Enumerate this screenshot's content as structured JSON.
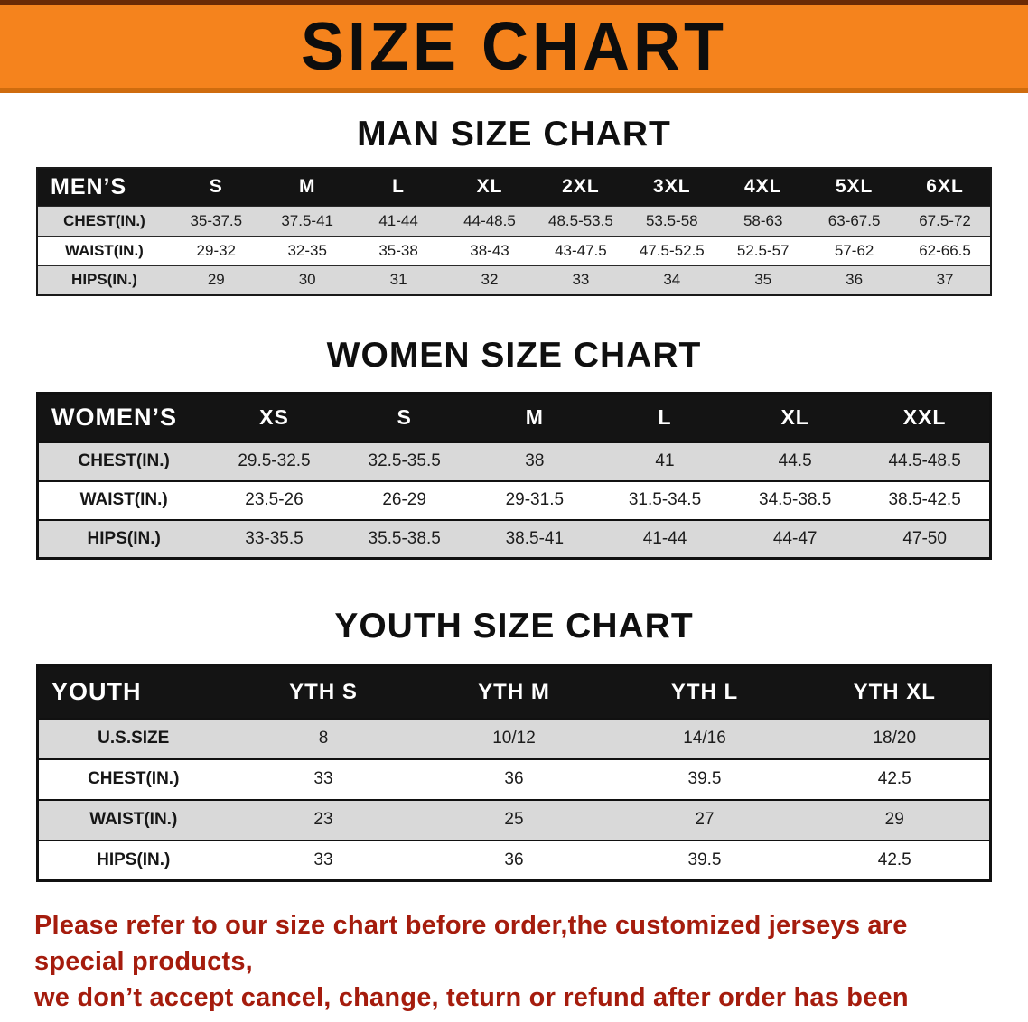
{
  "banner": {
    "title": "SIZE CHART"
  },
  "colors": {
    "banner_orange": "#f5831d",
    "header_black": "#141414",
    "row_gray": "#d9d9d9",
    "disclaimer_red": "#a51c0d"
  },
  "sections": [
    {
      "kind": "men",
      "heading": "MAN SIZE CHART",
      "table": {
        "header": [
          "MEN’S",
          "S",
          "M",
          "L",
          "XL",
          "2XL",
          "3XL",
          "4XL",
          "5XL",
          "6XL"
        ],
        "rows": [
          {
            "label": "CHEST(IN.)",
            "values": [
              "35-37.5",
              "37.5-41",
              "41-44",
              "44-48.5",
              "48.5-53.5",
              "53.5-58",
              "58-63",
              "63-67.5",
              "67.5-72"
            ]
          },
          {
            "label": "WAIST(IN.)",
            "values": [
              "29-32",
              "32-35",
              "35-38",
              "38-43",
              "43-47.5",
              "47.5-52.5",
              "52.5-57",
              "57-62",
              "62-66.5"
            ]
          },
          {
            "label": "HIPS(IN.)",
            "values": [
              "29",
              "30",
              "31",
              "32",
              "33",
              "34",
              "35",
              "36",
              "37"
            ]
          }
        ]
      }
    },
    {
      "kind": "women",
      "heading": "WOMEN SIZE CHART",
      "table": {
        "header": [
          "WOMEN’S",
          "XS",
          "S",
          "M",
          "L",
          "XL",
          "XXL"
        ],
        "rows": [
          {
            "label": "CHEST(IN.)",
            "values": [
              "29.5-32.5",
              "32.5-35.5",
              "38",
              "41",
              "44.5",
              "44.5-48.5"
            ]
          },
          {
            "label": "WAIST(IN.)",
            "values": [
              "23.5-26",
              "26-29",
              "29-31.5",
              "31.5-34.5",
              "34.5-38.5",
              "38.5-42.5"
            ]
          },
          {
            "label": "HIPS(IN.)",
            "values": [
              "33-35.5",
              "35.5-38.5",
              "38.5-41",
              "41-44",
              "44-47",
              "47-50"
            ]
          }
        ]
      }
    },
    {
      "kind": "youth",
      "heading": "YOUTH SIZE CHART",
      "table": {
        "header": [
          "YOUTH",
          "YTH S",
          "YTH M",
          "YTH L",
          "YTH XL"
        ],
        "rows": [
          {
            "label": "U.S.SIZE",
            "values": [
              "8",
              "10/12",
              "14/16",
              "18/20"
            ]
          },
          {
            "label": "CHEST(IN.)",
            "values": [
              "33",
              "36",
              "39.5",
              "42.5"
            ]
          },
          {
            "label": "WAIST(IN.)",
            "values": [
              "23",
              "25",
              "27",
              "29"
            ]
          },
          {
            "label": "HIPS(IN.)",
            "values": [
              "33",
              "36",
              "39.5",
              "42.5"
            ]
          }
        ]
      }
    }
  ],
  "disclaimer": {
    "lines": [
      "Please refer to our size chart before order,the customized jerseys are special products,",
      "we don’t accept cancel, change, teturn or refund after order has been placed!"
    ]
  }
}
